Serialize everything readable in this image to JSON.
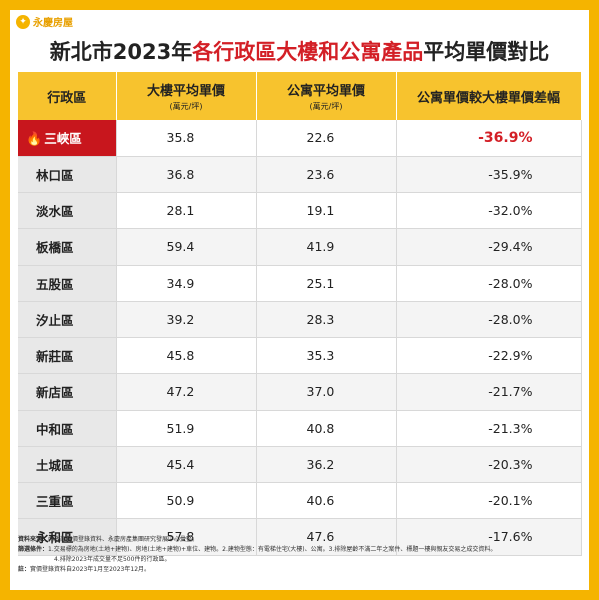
{
  "brand": {
    "name": "永慶房屋"
  },
  "title": {
    "prefix": "新北市2023年",
    "highlight": "各行政區大樓和公寓產品",
    "suffix": "平均單價對比"
  },
  "colors": {
    "background": "#f5b400",
    "header": "#f7c32e",
    "accent": "#d31f26",
    "hot_cell": "#c8161d"
  },
  "table": {
    "headers": [
      {
        "label": "行政區",
        "unit": ""
      },
      {
        "label": "大樓平均單價",
        "unit": "(萬元/坪)"
      },
      {
        "label": "公寓平均單價",
        "unit": "(萬元/坪)"
      },
      {
        "label": "公寓單價較大樓單價差幅",
        "unit": ""
      }
    ]
  },
  "chart_data": {
    "type": "table",
    "title": "新北市2023年各行政區大樓和公寓產品平均單價對比",
    "columns": [
      "行政區",
      "大樓平均單價(萬元/坪)",
      "公寓平均單價(萬元/坪)",
      "公寓單價較大樓單價差幅"
    ],
    "rows": [
      {
        "district": "三峽區",
        "building": "35.8",
        "apartment": "22.6",
        "diff": "-36.9%",
        "highlight": true
      },
      {
        "district": "林口區",
        "building": "36.8",
        "apartment": "23.6",
        "diff": "-35.9%"
      },
      {
        "district": "淡水區",
        "building": "28.1",
        "apartment": "19.1",
        "diff": "-32.0%"
      },
      {
        "district": "板橋區",
        "building": "59.4",
        "apartment": "41.9",
        "diff": "-29.4%"
      },
      {
        "district": "五股區",
        "building": "34.9",
        "apartment": "25.1",
        "diff": "-28.0%"
      },
      {
        "district": "汐止區",
        "building": "39.2",
        "apartment": "28.3",
        "diff": "-28.0%"
      },
      {
        "district": "新莊區",
        "building": "45.8",
        "apartment": "35.3",
        "diff": "-22.9%"
      },
      {
        "district": "新店區",
        "building": "47.2",
        "apartment": "37.0",
        "diff": "-21.7%"
      },
      {
        "district": "中和區",
        "building": "51.9",
        "apartment": "40.8",
        "diff": "-21.3%"
      },
      {
        "district": "土城區",
        "building": "45.4",
        "apartment": "36.2",
        "diff": "-20.3%"
      },
      {
        "district": "三重區",
        "building": "50.9",
        "apartment": "40.6",
        "diff": "-20.1%"
      },
      {
        "district": "永和區",
        "building": "57.8",
        "apartment": "47.6",
        "diff": "-17.6%"
      }
    ]
  },
  "notes": {
    "source_label": "資料來源：",
    "source_text": "內政部實價登錄資料、永慶房產集團研究發展中心彙整。",
    "filter_label": "篩選條件：",
    "filter_text": "1.交易標的為房地(土地+建物)、房地(土地+建物)+車位、建物。2.建物型態：有電梯住宅(大樓)、公寓。3.排除屋齡不滿二年之案件、標題一樓與親友交易之成交資料。",
    "filter_text_2": "4.排除2023年成交量不足500件的行政區。",
    "note_label": "註：",
    "note_text": "實價登錄資料自2023年1月至2023年12月。"
  }
}
